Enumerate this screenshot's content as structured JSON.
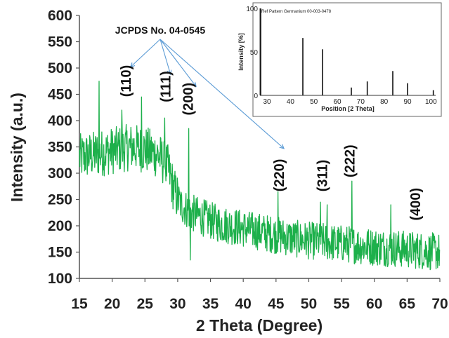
{
  "chart_data": [
    {
      "type": "line",
      "title": "",
      "xlabel": "2 Theta (Degree)",
      "ylabel": "Intensity (a.u.)",
      "xlim": [
        15,
        70
      ],
      "ylim": [
        100,
        600
      ],
      "x_ticks": [
        "15",
        "20",
        "25",
        "30",
        "35",
        "40",
        "45",
        "50",
        "55",
        "60",
        "65",
        "70"
      ],
      "y_ticks": [
        "100",
        "150",
        "200",
        "250",
        "300",
        "350",
        "400",
        "450",
        "500",
        "550",
        "600"
      ],
      "series_color": "#1db04b",
      "grid": false,
      "trend_x": [
        15,
        17,
        19,
        21,
        23,
        25,
        27,
        28.5,
        29.5,
        30.5,
        32,
        34,
        36,
        38,
        40,
        42,
        44,
        46,
        48,
        50,
        52,
        54,
        56,
        58,
        60,
        62,
        64,
        66,
        68,
        70
      ],
      "trend_y": [
        330,
        335,
        340,
        345,
        350,
        345,
        335,
        310,
        265,
        240,
        225,
        215,
        205,
        200,
        195,
        190,
        185,
        180,
        175,
        172,
        170,
        167,
        165,
        162,
        160,
        158,
        156,
        154,
        152,
        150
      ],
      "noise_amplitude": 45,
      "peaks": [
        {
          "x": 18.0,
          "y": 475
        },
        {
          "x": 21.5,
          "y": 420
        },
        {
          "x": 24.5,
          "y": 445
        },
        {
          "x": 28.0,
          "y": 405
        },
        {
          "x": 31.7,
          "y": 385
        },
        {
          "x": 31.9,
          "y": 135
        },
        {
          "x": 45.3,
          "y": 265
        },
        {
          "x": 51.8,
          "y": 245
        },
        {
          "x": 52.8,
          "y": 240
        },
        {
          "x": 56.6,
          "y": 285
        },
        {
          "x": 62.5,
          "y": 240
        }
      ],
      "annotations": {
        "reference": "JCPDS No. 04-0545",
        "miller_indices": [
          {
            "label": "(110)",
            "x": 22.8,
            "y": 445
          },
          {
            "label": "(111)",
            "x": 28.9,
            "y": 435
          },
          {
            "label": "(200)",
            "x": 32.3,
            "y": 410
          },
          {
            "label": "(220)",
            "x": 46.2,
            "y": 265
          },
          {
            "label": "(311)",
            "x": 52.8,
            "y": 265
          },
          {
            "label": "(222)",
            "x": 57.0,
            "y": 292
          },
          {
            "label": "(400)",
            "x": 67.0,
            "y": 210
          }
        ],
        "arrow_targets": [
          {
            "x": 22.8,
            "y": 502
          },
          {
            "x": 28.9,
            "y": 488
          },
          {
            "x": 32.8,
            "y": 465
          },
          {
            "x": 46.2,
            "y": 347
          }
        ]
      }
    },
    {
      "type": "bar",
      "title": "Ref Pattern Germanium 00-003-0478",
      "xlabel": "Position [2 Theta]",
      "ylabel": "Intensity [%]",
      "xlim": [
        27,
        102
      ],
      "ylim": [
        0,
        100
      ],
      "x_ticks": [
        "30",
        "40",
        "50",
        "60",
        "70",
        "80",
        "90",
        "100"
      ],
      "y_ticks": [
        "0",
        "50",
        "100"
      ],
      "x": [
        27.3,
        45.3,
        53.7,
        66.0,
        72.8,
        83.7,
        90.0,
        101.0
      ],
      "values": [
        100,
        66,
        53,
        9,
        16,
        28,
        14,
        6
      ]
    }
  ]
}
